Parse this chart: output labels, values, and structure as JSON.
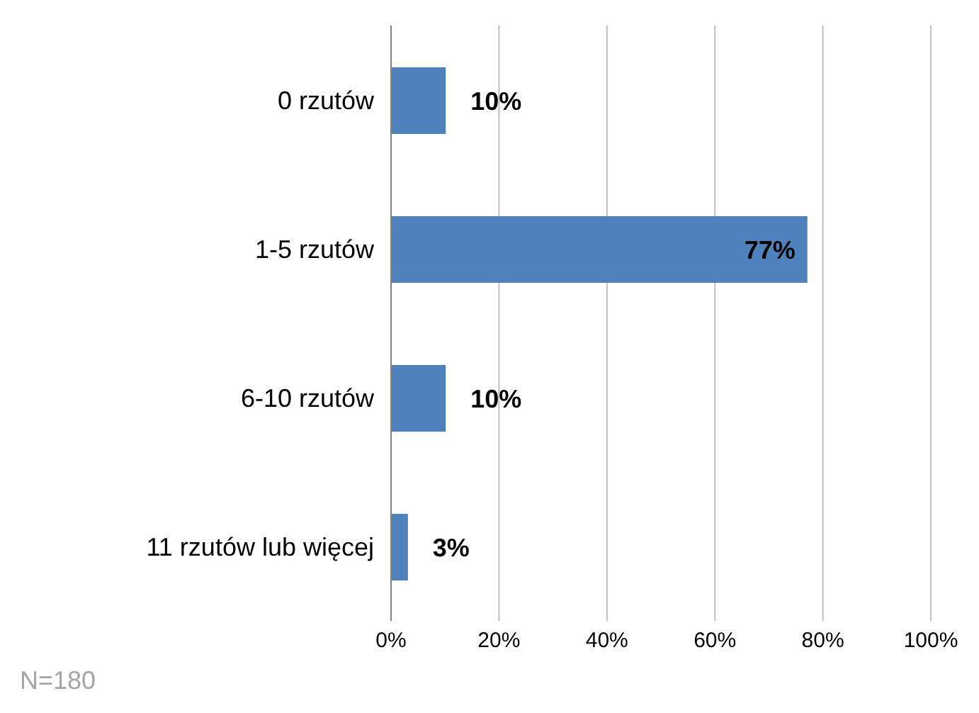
{
  "chart_data": {
    "type": "bar",
    "orientation": "horizontal",
    "categories": [
      "0 rzutów",
      "1-5 rzutów",
      "6-10 rzutów",
      "11 rzutów lub więcej"
    ],
    "values": [
      10,
      77,
      10,
      3
    ],
    "color": "#4f81bd",
    "value_labels": [
      "10%",
      "77%",
      "10%",
      "3%"
    ],
    "xlim": [
      0,
      100
    ],
    "xticks": [
      {
        "value": 0,
        "label": "0%"
      },
      {
        "value": 20,
        "label": "20%"
      },
      {
        "value": 40,
        "label": "40%"
      },
      {
        "value": 60,
        "label": "60%"
      },
      {
        "value": 80,
        "label": "80%"
      },
      {
        "value": 100,
        "label": "100%"
      }
    ],
    "grid": "x",
    "annotations": [
      "N=180"
    ]
  }
}
